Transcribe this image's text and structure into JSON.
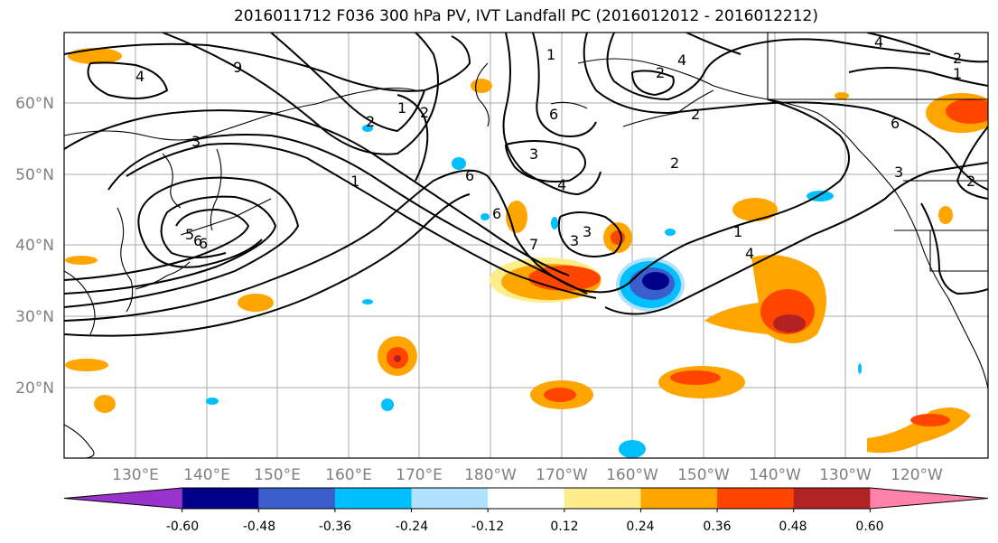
{
  "title": "2016011712 F036 300 hPa PV, IVT Landfall PC (2016012012 - 2016012212)",
  "map": {
    "lat_labels": [
      "60°N",
      "50°N",
      "40°N",
      "30°N",
      "20°N"
    ],
    "lon_labels": [
      "130°E",
      "140°E",
      "150°E",
      "160°E",
      "170°E",
      "180°W",
      "170°W",
      "160°W",
      "150°W",
      "140°W",
      "130°W",
      "120°W"
    ],
    "pv_contour_labels": [
      "4",
      "9",
      "1",
      "2",
      "3",
      "6",
      "5",
      "6",
      "1",
      "2",
      "6",
      "3",
      "6",
      "4",
      "7",
      "3",
      "3",
      "2",
      "4",
      "2",
      "2",
      "1",
      "4",
      "1",
      "6",
      "4",
      "2",
      "1",
      "6",
      "3",
      "2"
    ]
  },
  "colorbar": {
    "tick_labels": [
      "-0.60",
      "-0.48",
      "-0.36",
      "-0.24",
      "-0.12",
      "0.12",
      "0.24",
      "0.36",
      "0.48",
      "0.60"
    ],
    "colors": [
      "#9932cc",
      "#00008b",
      "#3a5fcd",
      "#00bfff",
      "#b0e2ff",
      "#ffffff",
      "#ffec8b",
      "#ffa500",
      "#ff4500",
      "#b22222",
      "#ff82ab"
    ]
  }
}
